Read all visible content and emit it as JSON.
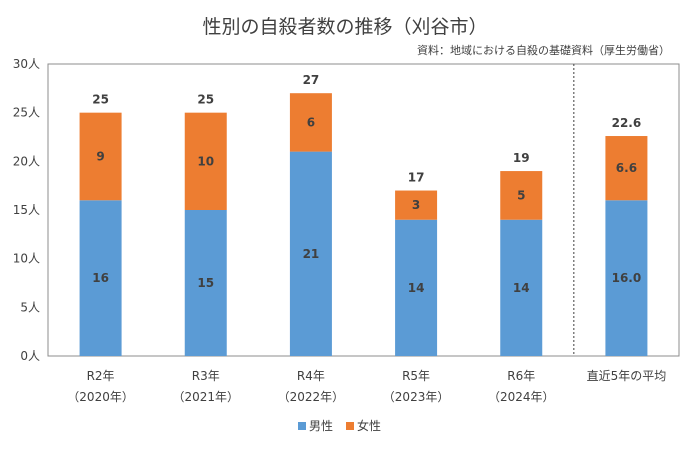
{
  "chart_data": {
    "type": "bar",
    "stacked": true,
    "title": "性別の自殺者数の推移（刈谷市）",
    "source": "資料：地域における自殺の基礎資料（厚生労働省）",
    "categories": [
      {
        "line1": "R2年",
        "line2": "（2020年）"
      },
      {
        "line1": "R3年",
        "line2": "（2021年）"
      },
      {
        "line1": "R4年",
        "line2": "（2022年）"
      },
      {
        "line1": "R5年",
        "line2": "（2023年）"
      },
      {
        "line1": "R6年",
        "line2": "（2024年）"
      },
      {
        "line1": "直近5年の平均",
        "line2": ""
      }
    ],
    "series": [
      {
        "name": "男性",
        "color": "#5B9BD5",
        "values": [
          16,
          15,
          21,
          14,
          14,
          16.0
        ],
        "labels": [
          "16",
          "15",
          "21",
          "14",
          "14",
          "16.0"
        ]
      },
      {
        "name": "女性",
        "color": "#ED7D31",
        "values": [
          9,
          10,
          6,
          3,
          5,
          6.6
        ],
        "labels": [
          "9",
          "10",
          "6",
          "3",
          "5",
          "6.6"
        ]
      }
    ],
    "totals": [
      "25",
      "25",
      "27",
      "17",
      "19",
      "22.6"
    ],
    "ylim": [
      0,
      30
    ],
    "yticks": [
      "0人",
      "5人",
      "10人",
      "15人",
      "20人",
      "25人",
      "30人"
    ],
    "ytick_values": [
      0,
      5,
      10,
      15,
      20,
      25,
      30
    ],
    "divider_after_index": 4,
    "legend_position": "bottom",
    "grid": false
  }
}
